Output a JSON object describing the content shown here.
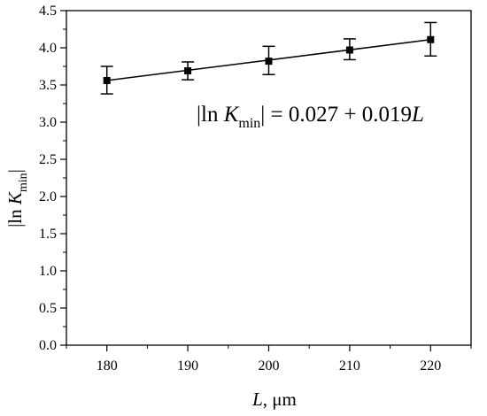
{
  "chart_data": {
    "type": "scatter",
    "x": [
      180,
      190,
      200,
      210,
      220
    ],
    "y": [
      3.56,
      3.69,
      3.82,
      3.97,
      4.11
    ],
    "y_err_upper": [
      3.75,
      3.81,
      4.02,
      4.12,
      4.34
    ],
    "y_err_lower": [
      3.38,
      3.57,
      3.64,
      3.84,
      3.89
    ],
    "fit": {
      "intercept": 0.027,
      "slope": 0.019
    },
    "xlim": [
      175,
      225
    ],
    "ylim": [
      0.0,
      4.5
    ],
    "x_ticks": [
      "180",
      "190",
      "200",
      "210",
      "220"
    ],
    "y_ticks": [
      "0.0",
      "0.5",
      "1.0",
      "1.5",
      "2.0",
      "2.5",
      "3.0",
      "3.5",
      "4.0",
      "4.5"
    ],
    "xlabel": {
      "symbol": "L",
      "rest": ", μm"
    },
    "ylabel": {
      "pre": "|ln ",
      "symbol": "K",
      "sub": "min",
      "post": "|"
    },
    "equation": {
      "pre": "|ln ",
      "symbol": "K",
      "sub": "min",
      "mid": "| = 0.027 + 0.019",
      "var": "L"
    },
    "grid": false,
    "legend": "none"
  }
}
